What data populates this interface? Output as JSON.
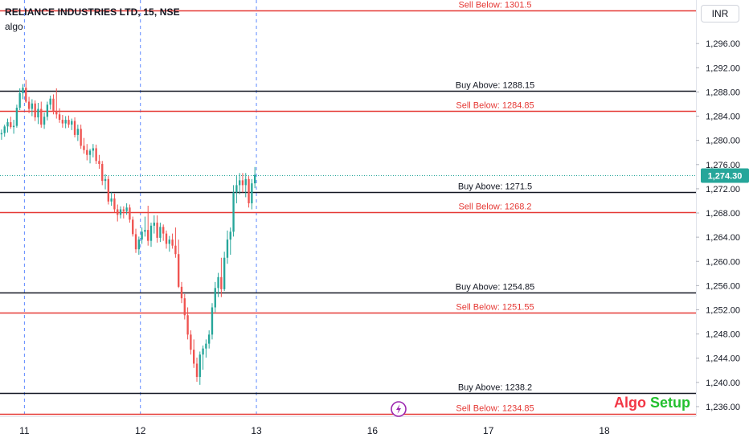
{
  "header": {
    "title": "RELIANCE INDUSTRIES LTD, 15, NSE",
    "indicator": "algo",
    "currency": "INR"
  },
  "watermark": {
    "part1": "Algo",
    "part2": "Setup"
  },
  "colors": {
    "up": "#26a69a",
    "down": "#ef5350",
    "sell_line": "#e53935",
    "buy_line": "#131722",
    "current_price_bg": "#26a69a",
    "session_divider": "#2962ff"
  },
  "chart_data": {
    "type": "candlestick",
    "ylim": [
      1234.4,
      1303.2
    ],
    "yticks": [
      1236,
      1240,
      1244,
      1248,
      1252,
      1256,
      1260,
      1264,
      1268,
      1272,
      1276,
      1280,
      1284,
      1288,
      1292,
      1296
    ],
    "ytick_labels": [
      "1,236.00",
      "1,240.00",
      "1,244.00",
      "1,248.00",
      "1,252.00",
      "1,256.00",
      "1,260.00",
      "1,264.00",
      "1,268.00",
      "1,272.00",
      "1,276.00",
      "1,280.00",
      "1,284.00",
      "1,288.00",
      "1,292.00",
      "1,296.00"
    ],
    "x_domain": [
      0,
      228
    ],
    "xticks": [
      {
        "pos": 8,
        "label": "11"
      },
      {
        "pos": 46,
        "label": "12"
      },
      {
        "pos": 84,
        "label": "13"
      },
      {
        "pos": 122,
        "label": "16"
      },
      {
        "pos": 160,
        "label": "17"
      },
      {
        "pos": 198,
        "label": "18"
      }
    ],
    "session_dividers": [
      8,
      46,
      84
    ],
    "current_price": {
      "value": 1274.3,
      "label": "1,274.30"
    },
    "levels": [
      {
        "type": "sell",
        "value": 1301.5,
        "label": "Sell Below: 1301.5"
      },
      {
        "type": "buy",
        "value": 1288.15,
        "label": "Buy Above: 1288.15"
      },
      {
        "type": "sell",
        "value": 1284.85,
        "label": "Sell Below: 1284.85"
      },
      {
        "type": "buy",
        "value": 1271.5,
        "label": "Buy Above: 1271.5"
      },
      {
        "type": "sell",
        "value": 1268.2,
        "label": "Sell Below: 1268.2"
      },
      {
        "type": "buy",
        "value": 1254.85,
        "label": "Buy Above: 1254.85"
      },
      {
        "type": "sell",
        "value": 1251.55,
        "label": "Sell Below: 1251.55"
      },
      {
        "type": "buy",
        "value": 1238.2,
        "label": "Buy Above: 1238.2"
      },
      {
        "type": "sell",
        "value": 1234.85,
        "label": "Sell Below: 1234.85"
      }
    ],
    "candles": [
      [
        1281.0,
        1281.8,
        1280.1,
        1281.2
      ],
      [
        1281.2,
        1282.6,
        1280.6,
        1282.3
      ],
      [
        1282.3,
        1283.6,
        1281.3,
        1283.0
      ],
      [
        1283.0,
        1283.9,
        1281.9,
        1282.2
      ],
      [
        1282.2,
        1283.4,
        1281.1,
        1282.4
      ],
      [
        1282.4,
        1285.9,
        1282.1,
        1285.4
      ],
      [
        1285.4,
        1288.6,
        1285.0,
        1287.8
      ],
      [
        1287.8,
        1289.3,
        1286.8,
        1288.7
      ],
      [
        1288.7,
        1290.0,
        1286.2,
        1286.4
      ],
      [
        1286.4,
        1287.2,
        1284.5,
        1285.2
      ],
      [
        1285.2,
        1286.8,
        1284.0,
        1286.1
      ],
      [
        1286.1,
        1286.6,
        1283.2,
        1283.8
      ],
      [
        1283.8,
        1286.2,
        1282.7,
        1285.2
      ],
      [
        1285.2,
        1286.4,
        1282.1,
        1282.6
      ],
      [
        1282.6,
        1284.6,
        1281.9,
        1283.9
      ],
      [
        1283.9,
        1286.4,
        1283.3,
        1285.9
      ],
      [
        1285.9,
        1287.4,
        1285.1,
        1286.9
      ],
      [
        1286.9,
        1287.6,
        1284.3,
        1284.8
      ],
      [
        1284.8,
        1288.6,
        1283.6,
        1284.3
      ],
      [
        1284.3,
        1285.3,
        1282.9,
        1283.4
      ],
      [
        1283.4,
        1284.2,
        1282.1,
        1282.8
      ],
      [
        1282.8,
        1284.0,
        1282.0,
        1283.4
      ],
      [
        1283.4,
        1284.1,
        1282.1,
        1282.6
      ],
      [
        1282.6,
        1283.6,
        1281.7,
        1283.2
      ],
      [
        1283.2,
        1283.8,
        1280.5,
        1280.9
      ],
      [
        1280.9,
        1282.6,
        1279.9,
        1281.9
      ],
      [
        1281.9,
        1282.6,
        1278.6,
        1279.1
      ],
      [
        1279.1,
        1280.4,
        1277.8,
        1278.4
      ],
      [
        1278.4,
        1279.4,
        1276.7,
        1277.6
      ],
      [
        1277.6,
        1278.6,
        1276.2,
        1278.3
      ],
      [
        1278.3,
        1279.4,
        1277.2,
        1278.7
      ],
      [
        1278.7,
        1279.3,
        1276.1,
        1276.6
      ],
      [
        1276.6,
        1277.6,
        1275.3,
        1276.1
      ],
      [
        1276.1,
        1276.6,
        1272.6,
        1273.3
      ],
      [
        1273.3,
        1274.4,
        1271.9,
        1273.6
      ],
      [
        1273.6,
        1274.1,
        1269.4,
        1269.9
      ],
      [
        1269.9,
        1271.4,
        1269.2,
        1270.4
      ],
      [
        1270.4,
        1271.2,
        1268.1,
        1268.6
      ],
      [
        1268.6,
        1269.4,
        1266.6,
        1267.7
      ],
      [
        1267.7,
        1269.1,
        1267.1,
        1268.6
      ],
      [
        1268.6,
        1269.1,
        1267.1,
        1268.3
      ],
      [
        1268.3,
        1269.6,
        1267.7,
        1268.9
      ],
      [
        1268.9,
        1269.4,
        1266.4,
        1266.9
      ],
      [
        1266.9,
        1267.4,
        1264.1,
        1264.5
      ],
      [
        1264.5,
        1265.4,
        1261.4,
        1262.0
      ],
      [
        1262.0,
        1264.1,
        1261.1,
        1263.6
      ],
      [
        1263.6,
        1265.6,
        1262.9,
        1264.9
      ],
      [
        1264.9,
        1267.4,
        1264.1,
        1265.2
      ],
      [
        1265.2,
        1269.2,
        1262.6,
        1263.4
      ],
      [
        1263.4,
        1266.4,
        1262.4,
        1265.9
      ],
      [
        1265.9,
        1267.6,
        1264.6,
        1266.4
      ],
      [
        1266.4,
        1267.6,
        1263.1,
        1263.9
      ],
      [
        1263.9,
        1266.4,
        1263.2,
        1265.7
      ],
      [
        1265.7,
        1266.1,
        1263.4,
        1264.6
      ],
      [
        1264.6,
        1265.1,
        1262.1,
        1262.9
      ],
      [
        1262.9,
        1264.2,
        1261.6,
        1263.6
      ],
      [
        1263.6,
        1264.6,
        1262.1,
        1262.6
      ],
      [
        1262.6,
        1265.6,
        1260.6,
        1261.2
      ],
      [
        1261.2,
        1263.6,
        1255.6,
        1255.8
      ],
      [
        1255.8,
        1256.6,
        1253.1,
        1253.9
      ],
      [
        1253.9,
        1254.6,
        1250.4,
        1251.1
      ],
      [
        1251.1,
        1252.4,
        1247.1,
        1247.9
      ],
      [
        1247.9,
        1248.6,
        1244.6,
        1245.4
      ],
      [
        1245.4,
        1247.1,
        1242.4,
        1243.1
      ],
      [
        1243.1,
        1244.1,
        1240.1,
        1240.9
      ],
      [
        1240.9,
        1245.1,
        1239.6,
        1244.6
      ],
      [
        1244.6,
        1246.1,
        1242.1,
        1245.6
      ],
      [
        1245.6,
        1247.1,
        1244.1,
        1246.4
      ],
      [
        1246.4,
        1248.6,
        1245.6,
        1247.9
      ],
      [
        1247.9,
        1253.1,
        1247.1,
        1252.4
      ],
      [
        1252.4,
        1256.6,
        1251.6,
        1255.6
      ],
      [
        1255.6,
        1258.1,
        1254.1,
        1257.4
      ],
      [
        1257.4,
        1260.6,
        1254.1,
        1255.4
      ],
      [
        1255.4,
        1261.6,
        1255.1,
        1260.6
      ],
      [
        1260.6,
        1265.1,
        1259.6,
        1263.6
      ],
      [
        1263.6,
        1265.6,
        1261.1,
        1264.9
      ],
      [
        1264.9,
        1272.6,
        1264.1,
        1271.4
      ],
      [
        1271.4,
        1274.1,
        1269.6,
        1272.6
      ],
      [
        1272.6,
        1274.6,
        1271.1,
        1273.4
      ],
      [
        1273.4,
        1274.6,
        1271.4,
        1272.6
      ],
      [
        1272.6,
        1274.6,
        1270.6,
        1273.6
      ],
      [
        1273.6,
        1274.1,
        1268.9,
        1269.6
      ],
      [
        1269.6,
        1273.6,
        1268.6,
        1272.9
      ],
      [
        1272.9,
        1275.6,
        1272.1,
        1274.3
      ]
    ]
  }
}
